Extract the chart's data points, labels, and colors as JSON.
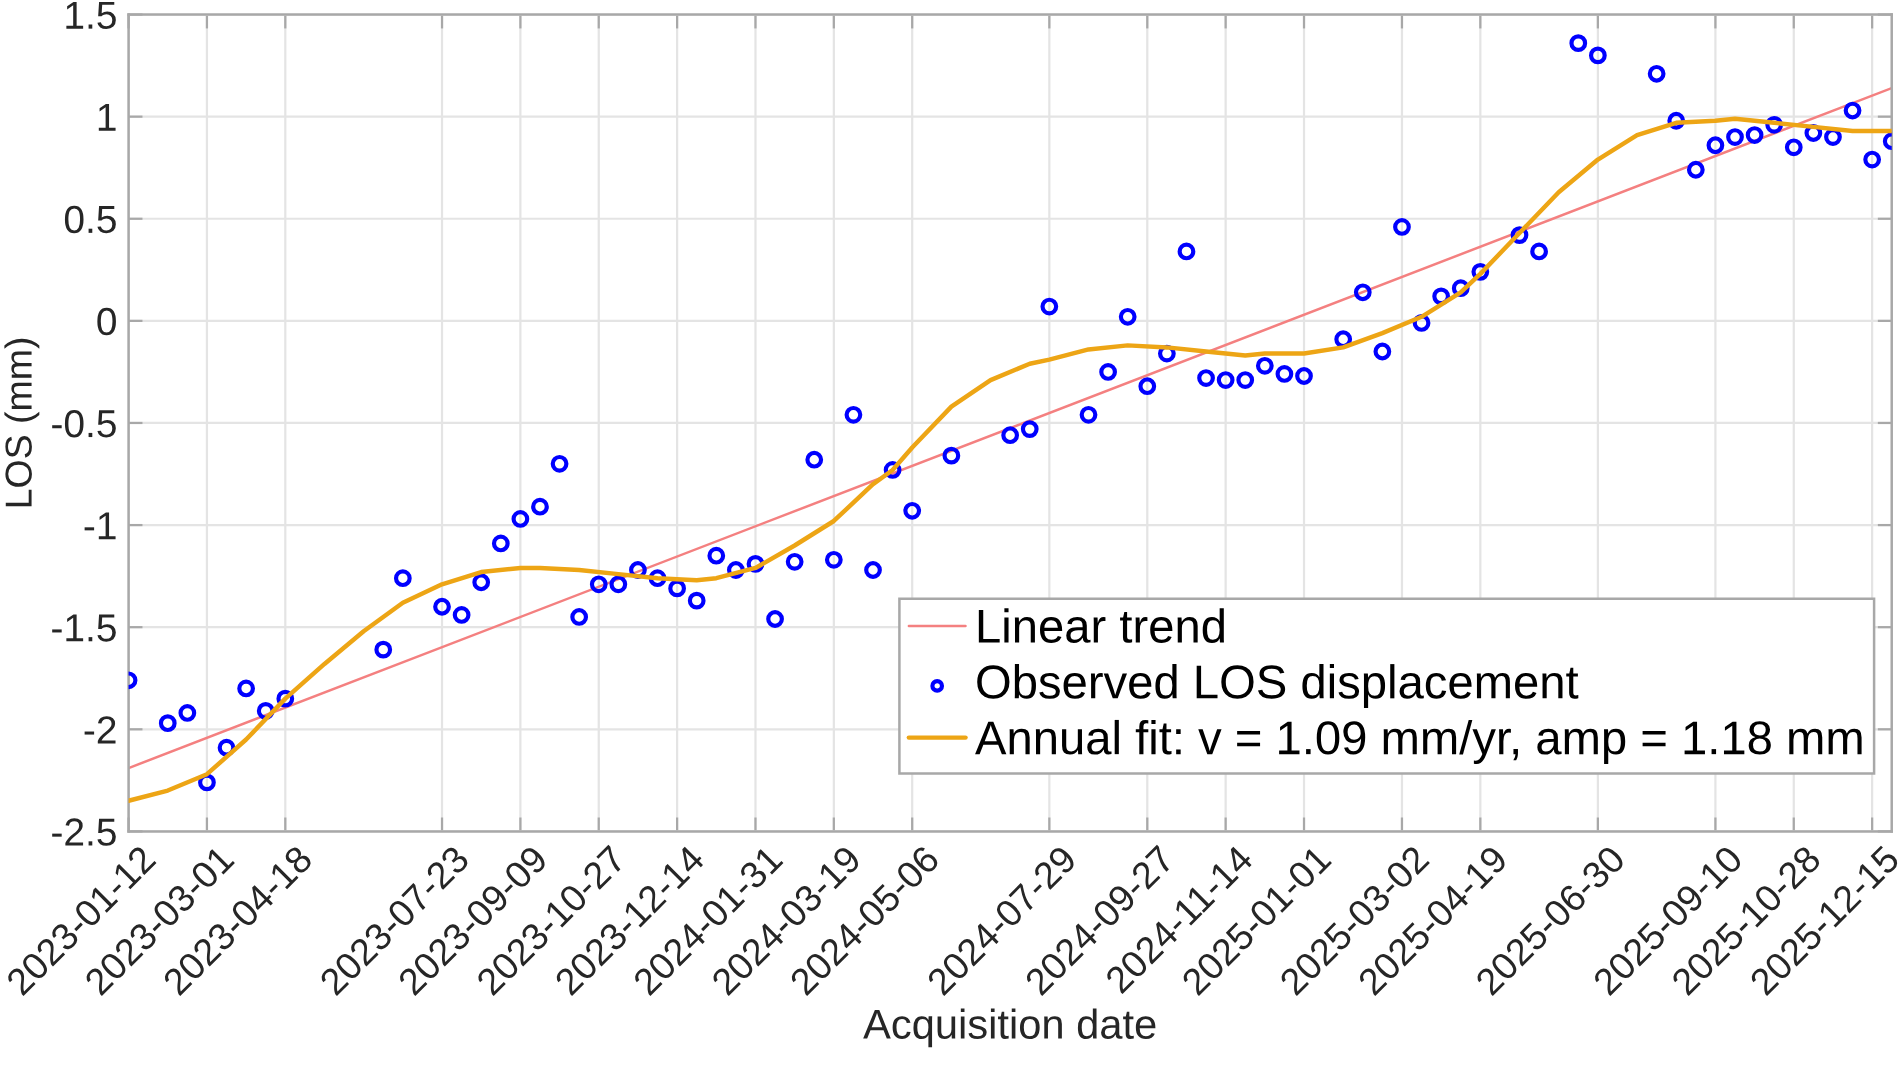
{
  "chart_data": {
    "type": "line",
    "xlabel": "Acquisition date",
    "ylabel": "LOS (mm)",
    "xlim": [
      "2023-01-12",
      "2025-12-27"
    ],
    "ylim": [
      -2.5,
      1.5
    ],
    "xticks": [
      "2023-01-12",
      "2023-03-01",
      "2023-04-18",
      "2023-07-23",
      "2023-09-09",
      "2023-10-27",
      "2023-12-14",
      "2024-01-31",
      "2024-03-19",
      "2024-05-06",
      "2024-07-29",
      "2024-09-27",
      "2024-11-14",
      "2025-01-01",
      "2025-03-02",
      "2025-04-19",
      "2025-06-30",
      "2025-09-10",
      "2025-10-28",
      "2025-12-15"
    ],
    "yticks": [
      -2.5,
      -2,
      -1.5,
      -1,
      -0.5,
      0,
      0.5,
      1,
      1.5
    ],
    "grid": true,
    "legend": "bottom right",
    "series": [
      {
        "name": "Linear trend",
        "color": "#f48080",
        "x": [
          "2023-01-12",
          "2025-12-27"
        ],
        "values": [
          -2.19,
          1.14
        ]
      },
      {
        "type": "scatter",
        "name": "Observed LOS displacement",
        "color": "#0000ff",
        "marker": "circle",
        "x": [
          "2023-01-12",
          "2023-02-05",
          "2023-02-17",
          "2023-03-01",
          "2023-03-13",
          "2023-03-25",
          "2023-04-06",
          "2023-04-18",
          "2023-06-17",
          "2023-06-29",
          "2023-07-23",
          "2023-08-04",
          "2023-08-16",
          "2023-08-28",
          "2023-09-09",
          "2023-09-21",
          "2023-10-03",
          "2023-10-15",
          "2023-10-27",
          "2023-11-08",
          "2023-11-20",
          "2023-12-02",
          "2023-12-14",
          "2023-12-26",
          "2024-01-07",
          "2024-01-19",
          "2024-01-31",
          "2024-02-12",
          "2024-02-24",
          "2024-03-07",
          "2024-03-19",
          "2024-03-31",
          "2024-04-12",
          "2024-04-24",
          "2024-05-06",
          "2024-05-30",
          "2024-07-05",
          "2024-07-17",
          "2024-07-29",
          "2024-08-22",
          "2024-09-03",
          "2024-09-15",
          "2024-09-27",
          "2024-10-09",
          "2024-10-21",
          "2024-11-02",
          "2024-11-14",
          "2024-11-26",
          "2024-12-08",
          "2024-12-20",
          "2025-01-01",
          "2025-01-25",
          "2025-02-06",
          "2025-02-18",
          "2025-03-02",
          "2025-03-14",
          "2025-03-26",
          "2025-04-07",
          "2025-04-19",
          "2025-05-13",
          "2025-05-25",
          "2025-06-18",
          "2025-06-30",
          "2025-08-05",
          "2025-08-17",
          "2025-08-29",
          "2025-09-10",
          "2025-09-22",
          "2025-10-04",
          "2025-10-16",
          "2025-10-28",
          "2025-11-09",
          "2025-11-21",
          "2025-12-03",
          "2025-12-15",
          "2025-12-27"
        ],
        "values": [
          -1.76,
          -1.97,
          -1.92,
          -2.26,
          -2.09,
          -1.8,
          -1.91,
          -1.85,
          -1.61,
          -1.26,
          -1.4,
          -1.44,
          -1.28,
          -1.09,
          -0.97,
          -0.91,
          -0.7,
          -1.45,
          -1.29,
          -1.29,
          -1.22,
          -1.26,
          -1.31,
          -1.37,
          -1.15,
          -1.22,
          -1.19,
          -1.46,
          -1.18,
          -0.68,
          -1.17,
          -0.46,
          -1.22,
          -0.73,
          -0.93,
          -0.66,
          -0.56,
          -0.53,
          0.07,
          -0.46,
          -0.25,
          0.02,
          -0.32,
          -0.16,
          0.34,
          -0.28,
          -0.29,
          -0.29,
          -0.22,
          -0.26,
          -0.27,
          -0.09,
          0.14,
          -0.15,
          0.46,
          -0.01,
          0.12,
          0.16,
          0.24,
          0.42,
          0.34,
          1.36,
          1.3,
          1.21,
          0.98,
          0.74,
          0.86,
          0.9,
          0.91,
          0.96,
          0.85,
          0.92,
          0.9,
          1.03,
          0.79,
          0.88
        ]
      },
      {
        "name": "Annual fit: v = 1.09 mm/yr, amp = 1.18 mm",
        "color": "#eda515",
        "x": [
          "2023-01-12",
          "2023-02-05",
          "2023-03-01",
          "2023-03-25",
          "2023-04-18",
          "2023-05-12",
          "2023-06-05",
          "2023-06-29",
          "2023-07-23",
          "2023-08-16",
          "2023-09-09",
          "2023-09-21",
          "2023-10-15",
          "2023-11-08",
          "2023-12-02",
          "2023-12-26",
          "2024-01-07",
          "2024-01-31",
          "2024-02-24",
          "2024-03-19",
          "2024-04-12",
          "2024-04-24",
          "2024-05-06",
          "2024-05-30",
          "2024-06-23",
          "2024-07-17",
          "2024-07-29",
          "2024-08-22",
          "2024-09-15",
          "2024-10-09",
          "2024-11-02",
          "2024-11-26",
          "2024-12-08",
          "2025-01-01",
          "2025-01-25",
          "2025-02-18",
          "2025-03-14",
          "2025-04-07",
          "2025-04-19",
          "2025-05-13",
          "2025-06-06",
          "2025-06-30",
          "2025-07-24",
          "2025-08-17",
          "2025-09-10",
          "2025-09-22",
          "2025-10-16",
          "2025-11-09",
          "2025-12-03",
          "2025-12-27"
        ],
        "values": [
          -2.35,
          -2.3,
          -2.22,
          -2.05,
          -1.85,
          -1.68,
          -1.52,
          -1.38,
          -1.29,
          -1.23,
          -1.21,
          -1.21,
          -1.22,
          -1.24,
          -1.26,
          -1.27,
          -1.26,
          -1.21,
          -1.1,
          -0.98,
          -0.8,
          -0.73,
          -0.62,
          -0.42,
          -0.29,
          -0.21,
          -0.19,
          -0.14,
          -0.12,
          -0.13,
          -0.15,
          -0.17,
          -0.16,
          -0.16,
          -0.13,
          -0.06,
          0.02,
          0.14,
          0.23,
          0.43,
          0.63,
          0.79,
          0.91,
          0.97,
          0.98,
          0.99,
          0.97,
          0.95,
          0.93,
          0.93
        ]
      }
    ]
  }
}
